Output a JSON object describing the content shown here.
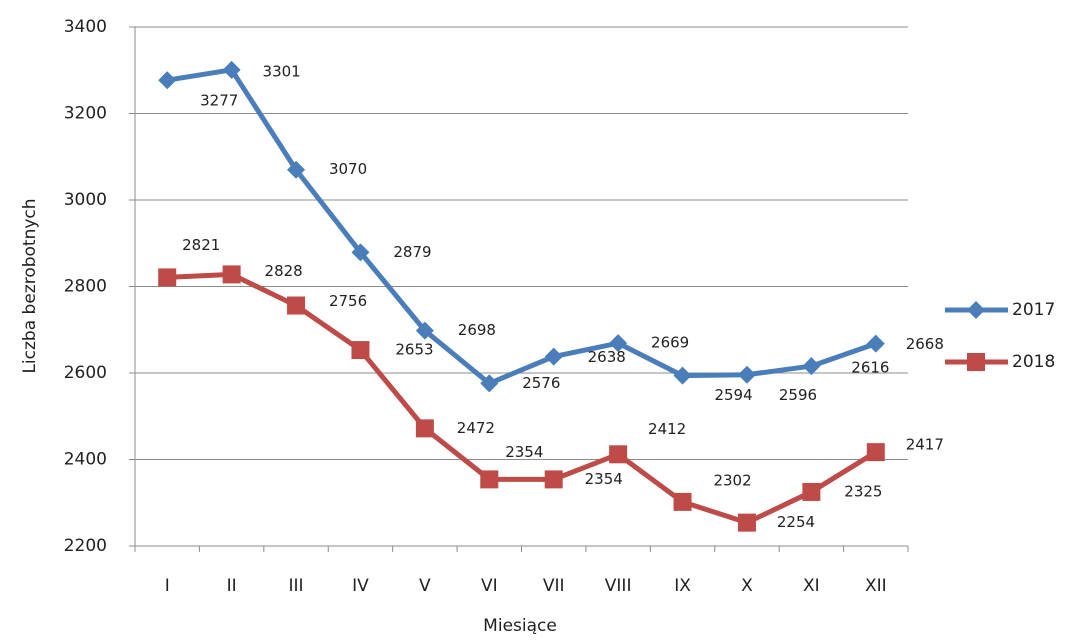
{
  "chart_data": {
    "type": "line",
    "x_label": "Miesiące",
    "y_label": "Liczba bezrobotnych",
    "categories": [
      "I",
      "II",
      "III",
      "IV",
      "V",
      "VI",
      "VII",
      "VIII",
      "IX",
      "X",
      "XI",
      "XII"
    ],
    "series": [
      {
        "name": "2017",
        "color": "#4a7ebb",
        "marker": "diamond",
        "values": [
          3277,
          3301,
          3070,
          2879,
          2698,
          2576,
          2638,
          2669,
          2594,
          2596,
          2616,
          2668
        ]
      },
      {
        "name": "2018",
        "color": "#be4b48",
        "marker": "square",
        "values": [
          2821,
          2828,
          2756,
          2653,
          2472,
          2354,
          2354,
          2412,
          2302,
          2254,
          2325,
          2417
        ]
      }
    ],
    "ylim": [
      2200,
      3400
    ],
    "yticks": [
      2200,
      2400,
      2600,
      2800,
      3000,
      3200,
      3400
    ],
    "grid": true,
    "legend": "right"
  }
}
